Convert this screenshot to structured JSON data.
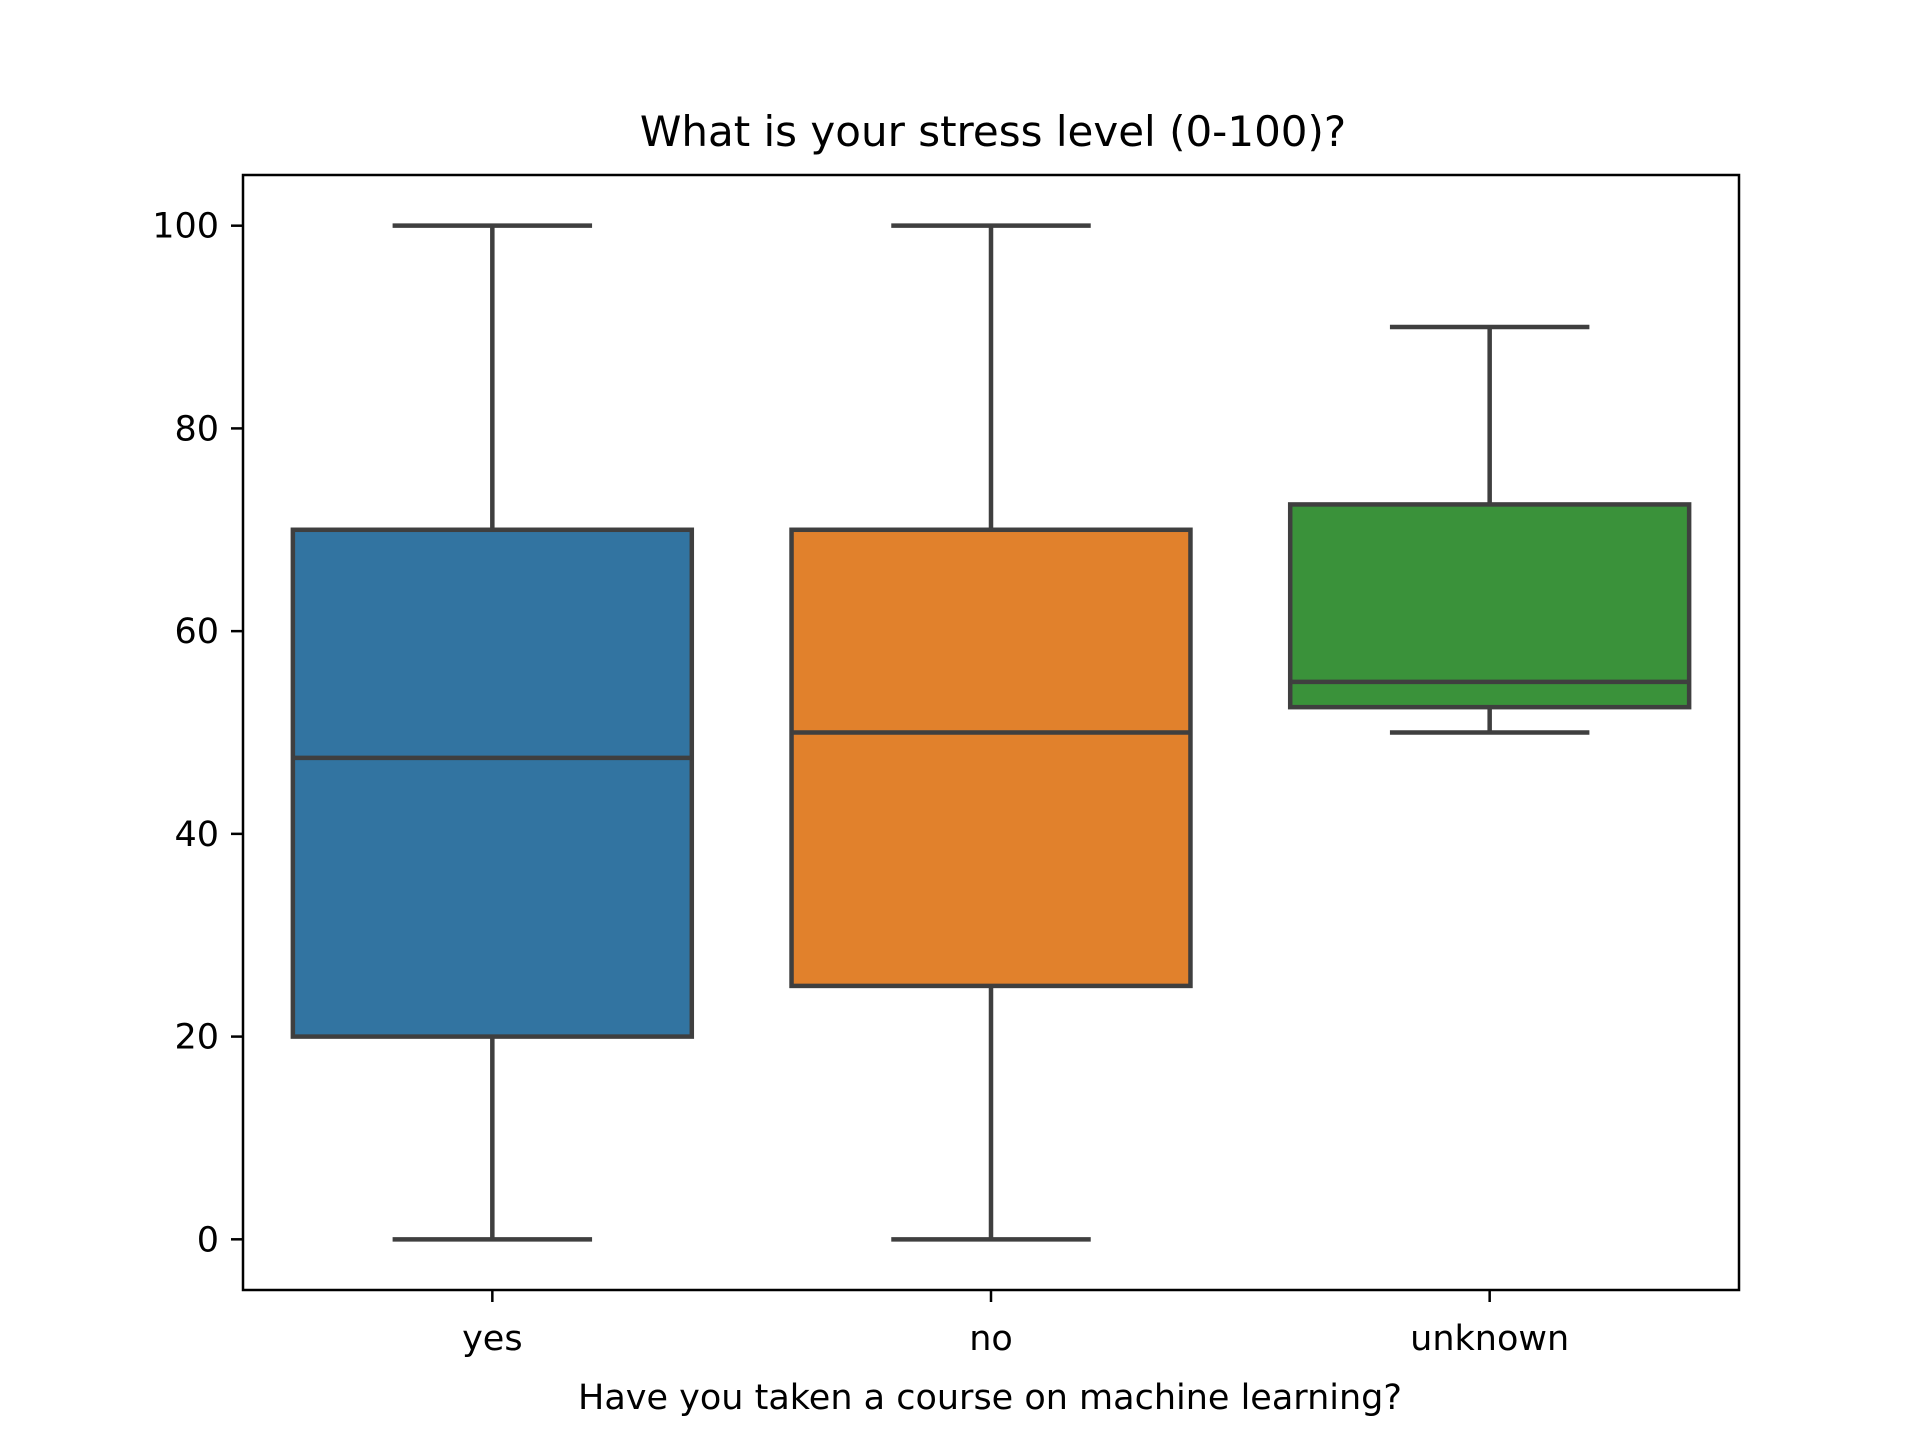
{
  "chart_data": {
    "type": "box",
    "title": "What is your stress level (0-100)?",
    "xlabel": "Have you taken a course on machine learning?",
    "ylabel": "",
    "categories": [
      "yes",
      "no",
      "unknown"
    ],
    "ylim": [
      -5,
      105
    ],
    "yticks": [
      0,
      20,
      40,
      60,
      80,
      100
    ],
    "grid": false,
    "series": [
      {
        "category": "yes",
        "whisker_low": 0,
        "q1": 20,
        "median": 47.5,
        "q3": 70,
        "whisker_high": 100,
        "color": "#3274a1"
      },
      {
        "category": "no",
        "whisker_low": 0,
        "q1": 25,
        "median": 50,
        "q3": 70,
        "whisker_high": 100,
        "color": "#e1812c"
      },
      {
        "category": "unknown",
        "whisker_low": 50,
        "q1": 52.5,
        "median": 55,
        "q3": 72.5,
        "whisker_high": 90,
        "color": "#3a923a"
      }
    ],
    "line_color": "#3f3f3f"
  }
}
